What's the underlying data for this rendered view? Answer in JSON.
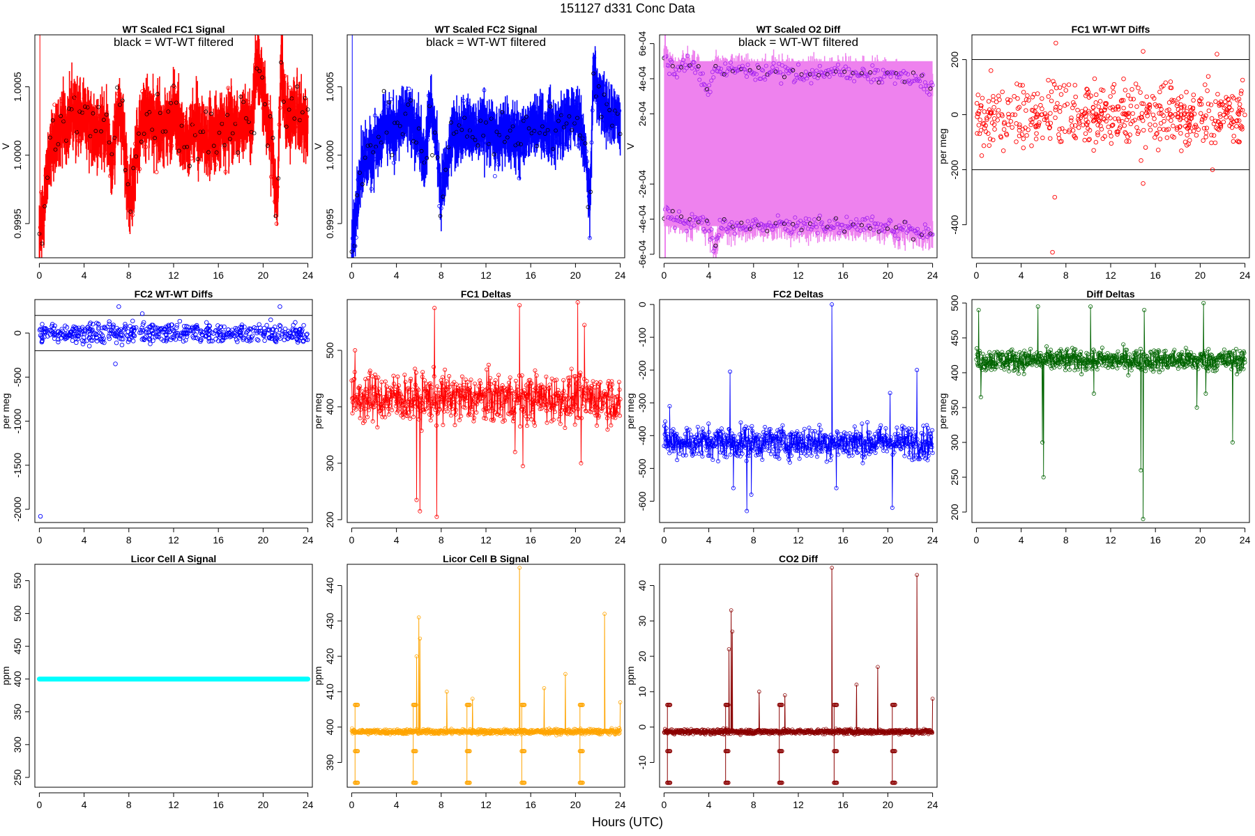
{
  "figure": {
    "title": "151127   d331   Conc Data",
    "xcaption": "Hours (UTC)"
  },
  "chart_data": [
    {
      "type": "line",
      "title": "WT Scaled FC1 Signal",
      "annotation": "black = WT-WT filtered",
      "ylabel": "V",
      "color": "#ff0000",
      "ylim": [
        0.99925,
        1.00088
      ],
      "yticks": [
        {
          "v": 0.9995,
          "label": "0.9995"
        },
        {
          "v": 1.0,
          "label": "1.0000"
        },
        {
          "v": 1.0005,
          "label": "1.0005"
        }
      ],
      "xlim": [
        -0.4,
        24.4
      ],
      "xticks": [
        0,
        4,
        8,
        12,
        16,
        20,
        24
      ],
      "style": "dense",
      "series": [
        {
          "x": [
            0,
            1,
            2,
            3,
            4,
            5,
            6,
            6.5,
            7,
            7.5,
            8,
            9,
            10,
            11,
            12,
            13,
            14,
            15,
            16,
            17,
            18,
            19,
            19.5,
            20,
            20.5,
            21,
            21.3,
            21.6,
            22,
            23,
            24
          ],
          "y": [
            0.99935,
            1.00005,
            1.0002,
            1.0003,
            1.00025,
            1.0002,
            1.0002,
            0.9999,
            1.00035,
            1.0002,
            0.99965,
            1.0002,
            1.0003,
            1.0002,
            1.0003,
            1.0001,
            1.0002,
            1.0001,
            1.00015,
            1.0002,
            1.0002,
            1.00025,
            1.0007,
            1.00045,
            1.00025,
            0.99985,
            0.9997,
            1.0007,
            1.0003,
            1.0003,
            1.0002
          ],
          "band": 0.00018
        }
      ]
    },
    {
      "type": "line",
      "title": "WT Scaled FC2 Signal",
      "annotation": "black = WT-WT filtered",
      "ylabel": "V",
      "color": "#0000ff",
      "ylim": [
        0.99925,
        1.00088
      ],
      "yticks": [
        {
          "v": 0.9995,
          "label": "0.9995"
        },
        {
          "v": 1.0,
          "label": "1.0000"
        },
        {
          "v": 1.0005,
          "label": "1.0005"
        }
      ],
      "xlim": [
        -0.4,
        24.4
      ],
      "xticks": [
        0,
        4,
        8,
        12,
        16,
        20,
        24
      ],
      "style": "dense",
      "series": [
        {
          "x": [
            0,
            1,
            2,
            3,
            4,
            5,
            6,
            6.5,
            7,
            7.5,
            8,
            9,
            10,
            11,
            12,
            13,
            14,
            15,
            16,
            17,
            18,
            19,
            20,
            20.5,
            21,
            21.3,
            21.6,
            22,
            23,
            24
          ],
          "y": [
            0.9993,
            0.99995,
            1.00005,
            1.0002,
            1.0002,
            1.0003,
            1.0002,
            0.9999,
            1.0004,
            1.0002,
            0.9997,
            1.00015,
            1.0002,
            1.00015,
            1.0002,
            1.0001,
            1.0002,
            1.0001,
            1.0002,
            1.0002,
            1.0002,
            1.00025,
            1.0003,
            1.0002,
            0.99995,
            0.9996,
            1.0006,
            1.00045,
            1.0003,
            1.00025
          ],
          "band": 0.00015
        }
      ]
    },
    {
      "type": "line",
      "title": "WT Scaled O2 Diff",
      "annotation": "black = WT-WT filtered",
      "ylabel": "V",
      "color": "#a020f0",
      "fill": "#ee82ee",
      "ylim": [
        -0.00062,
        0.00065
      ],
      "yticks": [
        {
          "v": -0.0006,
          "label": "-6e-04"
        },
        {
          "v": -0.0004,
          "label": "-4e-04"
        },
        {
          "v": -0.0002,
          "label": "-2e-04"
        },
        {
          "v": 0.0002,
          "label": "2e-04"
        },
        {
          "v": 0.0004,
          "label": "4e-04"
        },
        {
          "v": 0.0006,
          "label": "6e-04"
        }
      ],
      "xlim": [
        -0.4,
        24.4
      ],
      "xticks": [
        0,
        4,
        8,
        12,
        16,
        20,
        24
      ],
      "style": "band",
      "series": [
        {
          "x": [
            0,
            1,
            2,
            3,
            4,
            4.5,
            5,
            6,
            8,
            10,
            12,
            14,
            16,
            18,
            20,
            22,
            24
          ],
          "y": [
            0.00052,
            0.00045,
            0.00048,
            0.00047,
            0.0003,
            0.00045,
            0.00045,
            0.00046,
            0.00043,
            0.00044,
            0.00042,
            0.00043,
            0.00044,
            0.00042,
            0.00042,
            0.00041,
            0.00034
          ],
          "band": 4e-05
        },
        {
          "x": [
            0,
            1,
            2,
            3,
            4,
            4.5,
            5,
            6,
            8,
            10,
            12,
            14,
            16,
            18,
            20,
            22,
            24
          ],
          "y": [
            -0.00037,
            -0.0004,
            -0.00042,
            -0.00039,
            -0.00044,
            -0.00055,
            -0.00044,
            -0.00045,
            -0.00043,
            -0.00043,
            -0.00044,
            -0.00043,
            -0.00044,
            -0.00043,
            -0.00045,
            -0.00046,
            -0.00048
          ],
          "band": 4e-05
        }
      ]
    },
    {
      "type": "scatter",
      "title": "FC1 WT-WT Diffs",
      "ylabel": "per meg",
      "color": "#ff0000",
      "ylim": [
        -520,
        290
      ],
      "yticks": [
        {
          "v": -400,
          "label": "-400"
        },
        {
          "v": -200,
          "label": "-200"
        },
        {
          "v": 0,
          "label": "0"
        },
        {
          "v": 200,
          "label": "200"
        }
      ],
      "xlim": [
        -0.4,
        24.4
      ],
      "xticks": [
        0,
        4,
        8,
        12,
        16,
        20,
        24
      ],
      "hlines": [
        -200,
        200
      ],
      "style": "scatter",
      "series": [
        {
          "center": 0,
          "spread": 55,
          "outliers": [
            [
              7.1,
              260
            ],
            [
              7.0,
              -300
            ],
            [
              6.8,
              -500
            ],
            [
              14.9,
              230
            ],
            [
              21.5,
              220
            ],
            [
              14.9,
              -250
            ],
            [
              21.1,
              -200
            ],
            [
              1.3,
              160
            ]
          ]
        }
      ]
    },
    {
      "type": "scatter",
      "title": "FC2 WT-WT Diffs",
      "ylabel": "per meg",
      "color": "#0000ff",
      "ylim": [
        -2150,
        380
      ],
      "yticks": [
        {
          "v": -2000,
          "label": "-2000"
        },
        {
          "v": -1500,
          "label": "-1500"
        },
        {
          "v": -1000,
          "label": "-1000"
        },
        {
          "v": -500,
          "label": "-500"
        },
        {
          "v": 0,
          "label": "0"
        }
      ],
      "xlim": [
        -0.4,
        24.4
      ],
      "xticks": [
        0,
        4,
        8,
        12,
        16,
        20,
        24
      ],
      "hlines": [
        -200,
        200
      ],
      "style": "scatter",
      "series": [
        {
          "center": 0,
          "spread": 55,
          "outliers": [
            [
              0.1,
              -2080
            ],
            [
              7.1,
              300
            ],
            [
              6.8,
              -350
            ],
            [
              21.5,
              300
            ],
            [
              9.2,
              220
            ]
          ]
        }
      ]
    },
    {
      "type": "line",
      "title": "FC1 Deltas",
      "ylabel": "per meg",
      "color": "#ff0000",
      "ylim": [
        195,
        590
      ],
      "yticks": [
        {
          "v": 200,
          "label": "200"
        },
        {
          "v": 300,
          "label": "300"
        },
        {
          "v": 400,
          "label": "400"
        },
        {
          "v": 500,
          "label": "500"
        }
      ],
      "xlim": [
        -0.4,
        24.4
      ],
      "xticks": [
        0,
        4,
        8,
        12,
        16,
        20,
        24
      ],
      "style": "spiky",
      "series": [
        {
          "base": 415,
          "noise": 22,
          "spikes": [
            [
              5.8,
              235
            ],
            [
              6.1,
              215
            ],
            [
              7.4,
              575
            ],
            [
              7.6,
              205
            ],
            [
              15.0,
              580
            ],
            [
              15.3,
              295
            ],
            [
              20.2,
              585
            ],
            [
              20.5,
              300
            ],
            [
              14.6,
              320
            ],
            [
              20.8,
              545
            ],
            [
              0.3,
              500
            ]
          ]
        }
      ]
    },
    {
      "type": "line",
      "title": "FC2 Deltas",
      "ylabel": "per meg",
      "color": "#0000ff",
      "ylim": [
        -665,
        15
      ],
      "yticks": [
        {
          "v": -600,
          "label": "-600"
        },
        {
          "v": -500,
          "label": "-500"
        },
        {
          "v": -400,
          "label": "-400"
        },
        {
          "v": -300,
          "label": "-300"
        },
        {
          "v": -200,
          "label": "-200"
        },
        {
          "v": -100,
          "label": "-100"
        },
        {
          "v": 0,
          "label": "0"
        }
      ],
      "xlim": [
        -0.4,
        24.4
      ],
      "xticks": [
        0,
        4,
        8,
        12,
        16,
        20,
        24
      ],
      "style": "spiky",
      "series": [
        {
          "base": -420,
          "noise": 25,
          "spikes": [
            [
              5.9,
              -205
            ],
            [
              7.4,
              -630
            ],
            [
              7.8,
              -580
            ],
            [
              15.0,
              0
            ],
            [
              15.4,
              -560
            ],
            [
              20.2,
              -270
            ],
            [
              20.4,
              -620
            ],
            [
              22.6,
              -200
            ],
            [
              0.5,
              -310
            ],
            [
              6.2,
              -560
            ]
          ]
        }
      ]
    },
    {
      "type": "line",
      "title": "Diff Deltas",
      "ylabel": "per meg",
      "color": "#006400",
      "ylim": [
        185,
        505
      ],
      "yticks": [
        {
          "v": 200,
          "label": "200"
        },
        {
          "v": 250,
          "label": "250"
        },
        {
          "v": 300,
          "label": "300"
        },
        {
          "v": 350,
          "label": "350"
        },
        {
          "v": 400,
          "label": "400"
        },
        {
          "v": 450,
          "label": "450"
        },
        {
          "v": 500,
          "label": "500"
        }
      ],
      "xlim": [
        -0.4,
        24.4
      ],
      "xticks": [
        0,
        4,
        8,
        12,
        16,
        20,
        24
      ],
      "style": "spiky",
      "series": [
        {
          "base": 418,
          "noise": 8,
          "spikes": [
            [
              0.2,
              490
            ],
            [
              0.4,
              365
            ],
            [
              5.5,
              495
            ],
            [
              5.9,
              300
            ],
            [
              6.0,
              250
            ],
            [
              10.2,
              495
            ],
            [
              10.5,
              370
            ],
            [
              15.0,
              490
            ],
            [
              14.9,
              190
            ],
            [
              14.7,
              260
            ],
            [
              20.3,
              500
            ],
            [
              20.5,
              370
            ],
            [
              22.9,
              300
            ],
            [
              19.7,
              350
            ]
          ]
        }
      ]
    },
    {
      "type": "line",
      "title": "Licor Cell A Signal",
      "ylabel": "ppm",
      "color": "#00ffff",
      "ylim": [
        235,
        575
      ],
      "yticks": [
        {
          "v": 250,
          "label": "250"
        },
        {
          "v": 300,
          "label": "300"
        },
        {
          "v": 350,
          "label": "350"
        },
        {
          "v": 400,
          "label": "400"
        },
        {
          "v": 450,
          "label": "450"
        },
        {
          "v": 500,
          "label": "500"
        },
        {
          "v": 550,
          "label": "550"
        }
      ],
      "xlim": [
        -0.4,
        24.4
      ],
      "xticks": [
        0,
        4,
        8,
        12,
        16,
        20,
        24
      ],
      "style": "flat",
      "series": [
        {
          "x": [
            0,
            24
          ],
          "y": [
            400,
            400
          ]
        }
      ]
    },
    {
      "type": "line",
      "title": "Licor Cell B Signal",
      "ylabel": "ppm",
      "color": "#ffa500",
      "ylim": [
        383,
        446
      ],
      "yticks": [
        {
          "v": 390,
          "label": "390"
        },
        {
          "v": 400,
          "label": "400"
        },
        {
          "v": 410,
          "label": "410"
        },
        {
          "v": 420,
          "label": "420"
        },
        {
          "v": 430,
          "label": "430"
        },
        {
          "v": 440,
          "label": "440"
        }
      ],
      "xlim": [
        -0.4,
        24.4
      ],
      "xticks": [
        0,
        4,
        8,
        12,
        16,
        20,
        24
      ],
      "style": "licor",
      "series": [
        {
          "base": 398.7,
          "noise": 0.35,
          "spikes": [
            [
              6.0,
              431
            ],
            [
              6.1,
              425
            ],
            [
              5.8,
              420
            ],
            [
              15.0,
              445
            ],
            [
              22.6,
              432
            ],
            [
              17.2,
              411
            ],
            [
              19.1,
              415
            ],
            [
              8.5,
              410
            ],
            [
              10.8,
              408
            ],
            [
              24.0,
              407
            ]
          ],
          "steps": [
            0.3,
            5.5,
            10.3,
            15.2,
            20.4
          ]
        }
      ]
    },
    {
      "type": "line",
      "title": "CO2 Diff",
      "ylabel": "ppm",
      "color": "#8b0000",
      "ylim": [
        -17,
        46
      ],
      "yticks": [
        {
          "v": -10,
          "label": "-10"
        },
        {
          "v": 0,
          "label": "0"
        },
        {
          "v": 10,
          "label": "10"
        },
        {
          "v": 20,
          "label": "20"
        },
        {
          "v": 30,
          "label": "30"
        },
        {
          "v": 40,
          "label": "40"
        }
      ],
      "xlim": [
        -0.4,
        24.4
      ],
      "xticks": [
        0,
        4,
        8,
        12,
        16,
        20,
        24
      ],
      "style": "licor",
      "series": [
        {
          "base": -1.3,
          "noise": 0.35,
          "spikes": [
            [
              6.0,
              33
            ],
            [
              6.1,
              27
            ],
            [
              5.8,
              22
            ],
            [
              15.0,
              45
            ],
            [
              22.6,
              43
            ],
            [
              17.2,
              12
            ],
            [
              19.1,
              17
            ],
            [
              8.5,
              10
            ],
            [
              10.8,
              9
            ],
            [
              24.0,
              8
            ]
          ],
          "steps": [
            0.3,
            5.5,
            10.3,
            15.2,
            20.4
          ]
        }
      ]
    }
  ]
}
